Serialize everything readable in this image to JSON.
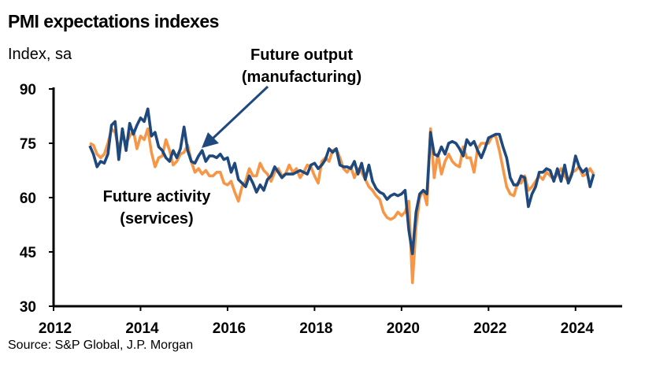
{
  "title": "PMI expectations indexes",
  "subtitle": "Index, sa",
  "source": "Source: S&P Global, J.P. Morgan",
  "chart_data": {
    "type": "line",
    "title": "PMI expectations indexes",
    "ylabel": "Index, sa",
    "xlim": [
      2012,
      2025
    ],
    "ylim": [
      30,
      90
    ],
    "yticks": [
      30,
      45,
      60,
      75,
      90
    ],
    "xticks": [
      "2012",
      "2014",
      "2016",
      "2018",
      "2020",
      "2022",
      "2024"
    ],
    "grid": false,
    "frequency": "monthly",
    "start": "2012-11",
    "annotations": [
      {
        "lines": [
          "Future output",
          "(manufacturing)"
        ],
        "series": "manufacturing",
        "arrow": true
      },
      {
        "lines": [
          "Future activity",
          "(services)"
        ],
        "series": "services",
        "arrow": false
      }
    ],
    "series": [
      {
        "key": "services",
        "color": "#F79646",
        "values": [
          75,
          74.5,
          72,
          71,
          72,
          75,
          79,
          78,
          73.5,
          77,
          75,
          77,
          78.5,
          73.5,
          77,
          76,
          79,
          72.5,
          68.5,
          71,
          71.5,
          76,
          73,
          69,
          70,
          72,
          72.5,
          74.5,
          70,
          67,
          68,
          66.5,
          67.5,
          66,
          66,
          67,
          67,
          64,
          63.5,
          64.5,
          61.5,
          59,
          63,
          64.5,
          68,
          66,
          66,
          69.5,
          67.5,
          66.5,
          64.5,
          67,
          68,
          66,
          66.5,
          69,
          67,
          68,
          65.5,
          67,
          69,
          68.5,
          66,
          64,
          70,
          71,
          70,
          73,
          73.5,
          71,
          68,
          67,
          68.5,
          65.5,
          68,
          67,
          65,
          63,
          62,
          60.5,
          59.5,
          56,
          54.5,
          54,
          54.5,
          56,
          55,
          56,
          59,
          36.5,
          52,
          60,
          62,
          58,
          79,
          65.5,
          72,
          66.5,
          70,
          72,
          70,
          69,
          68.5,
          74,
          71,
          71,
          67,
          73.5,
          75,
          75,
          75,
          77,
          77,
          73,
          68,
          63,
          61,
          60.5,
          64,
          64,
          66,
          62,
          63,
          64.5,
          66,
          65,
          67,
          66,
          65,
          66.5,
          68,
          66,
          64.5,
          67,
          67.5,
          68.5,
          66,
          66.5,
          68,
          66.5
        ]
      },
      {
        "key": "manufacturing",
        "color": "#1F497D",
        "values": [
          74.3,
          72,
          68.5,
          70,
          69.5,
          72,
          80,
          81,
          70.5,
          79,
          73,
          80.5,
          77.5,
          80,
          82,
          81,
          84.5,
          77,
          78,
          74,
          73,
          71,
          70,
          73,
          71,
          73.5,
          79.5,
          73,
          70,
          69.5,
          71.5,
          73,
          70,
          71.5,
          71.5,
          71,
          72,
          70.5,
          71,
          67,
          69.5,
          65,
          64,
          63,
          66,
          64,
          61.5,
          63.5,
          62,
          65,
          66,
          68.5,
          67,
          65.5,
          66.5,
          66.5,
          66.5,
          67,
          67.5,
          67,
          66.5,
          69,
          69.5,
          68,
          69,
          70.5,
          73.5,
          72.5,
          73.5,
          69,
          68.5,
          68.5,
          68,
          70,
          66.5,
          69.5,
          65,
          69,
          64.5,
          62.5,
          61.5,
          61,
          59.5,
          60.5,
          61,
          60.5,
          61,
          62,
          51,
          44.5,
          56,
          61,
          62,
          61,
          78,
          72,
          71.5,
          74,
          72,
          75,
          75.5,
          75,
          73.5,
          71.5,
          76,
          74.5,
          75.5,
          73,
          71,
          73.5,
          76.5,
          77,
          77.5,
          77.5,
          74,
          71,
          65.5,
          63.5,
          63.5,
          66,
          65.5,
          57.5,
          61,
          63,
          67,
          67,
          68,
          67.5,
          64.5,
          68,
          64.5,
          69,
          64,
          66.5,
          71.5,
          68.5,
          67,
          68,
          63,
          66.5
        ]
      }
    ]
  }
}
